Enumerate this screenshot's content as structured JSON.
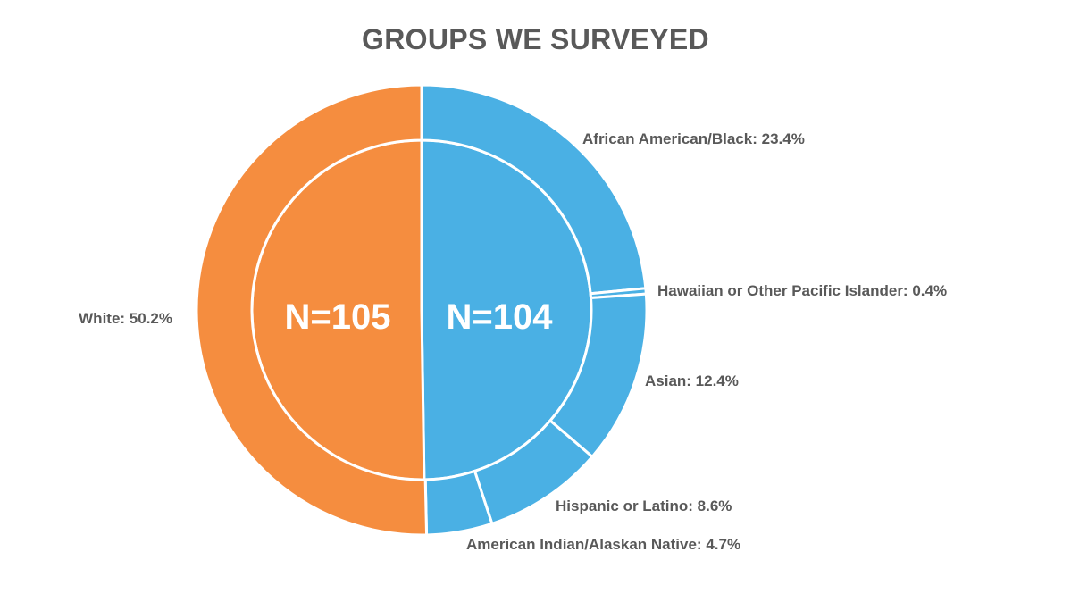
{
  "chart_data": {
    "type": "pie",
    "title": "GROUPS WE SURVEYED",
    "inner_ring": {
      "slices": [
        {
          "label": "N=104",
          "value": 104,
          "color": "#4AB0E4"
        },
        {
          "label": "N=105",
          "value": 105,
          "color": "#F58D3F"
        }
      ]
    },
    "outer_ring": {
      "slices": [
        {
          "name": "African American/Black",
          "value": 23.4,
          "label": "African American/Black: 23.4%",
          "color": "#4AB0E4"
        },
        {
          "name": "Hawaiian or Other Pacific Islander",
          "value": 0.4,
          "label": "Hawaiian or Other Pacific Islander: 0.4%",
          "color": "#4AB0E4"
        },
        {
          "name": "Asian",
          "value": 12.4,
          "label": "Asian: 12.4%",
          "color": "#4AB0E4"
        },
        {
          "name": "Hispanic or Latino",
          "value": 8.6,
          "label": "Hispanic or Latino: 8.6%",
          "color": "#4AB0E4"
        },
        {
          "name": "American Indian/Alaskan Native",
          "value": 4.7,
          "label": "American Indian/Alaskan Native: 4.7%",
          "color": "#4AB0E4"
        },
        {
          "name": "White",
          "value": 50.2,
          "label": "White: 50.2%",
          "color": "#F58D3F"
        }
      ]
    }
  }
}
